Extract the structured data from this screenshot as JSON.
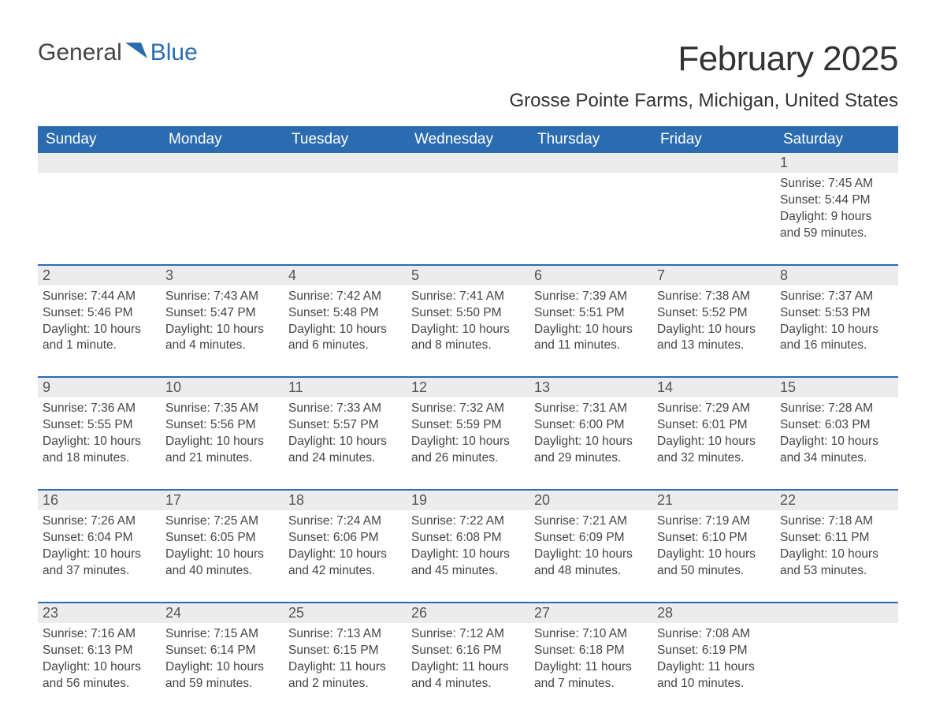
{
  "logo": {
    "text1": "General",
    "text2": "Blue"
  },
  "title": "February 2025",
  "location": "Grosse Pointe Farms, Michigan, United States",
  "colors": {
    "header_bg": "#2b6cb0",
    "header_text": "#ffffff",
    "daynum_bg": "#ececec",
    "text": "#333333",
    "row_border": "#2b6cb0"
  },
  "weekdays": [
    "Sunday",
    "Monday",
    "Tuesday",
    "Wednesday",
    "Thursday",
    "Friday",
    "Saturday"
  ],
  "labels": {
    "sunrise": "Sunrise:",
    "sunset": "Sunset:",
    "daylight": "Daylight:"
  },
  "weeks": [
    [
      null,
      null,
      null,
      null,
      null,
      null,
      {
        "n": "1",
        "sunrise": "7:45 AM",
        "sunset": "5:44 PM",
        "daylight": "9 hours and 59 minutes."
      }
    ],
    [
      {
        "n": "2",
        "sunrise": "7:44 AM",
        "sunset": "5:46 PM",
        "daylight": "10 hours and 1 minute."
      },
      {
        "n": "3",
        "sunrise": "7:43 AM",
        "sunset": "5:47 PM",
        "daylight": "10 hours and 4 minutes."
      },
      {
        "n": "4",
        "sunrise": "7:42 AM",
        "sunset": "5:48 PM",
        "daylight": "10 hours and 6 minutes."
      },
      {
        "n": "5",
        "sunrise": "7:41 AM",
        "sunset": "5:50 PM",
        "daylight": "10 hours and 8 minutes."
      },
      {
        "n": "6",
        "sunrise": "7:39 AM",
        "sunset": "5:51 PM",
        "daylight": "10 hours and 11 minutes."
      },
      {
        "n": "7",
        "sunrise": "7:38 AM",
        "sunset": "5:52 PM",
        "daylight": "10 hours and 13 minutes."
      },
      {
        "n": "8",
        "sunrise": "7:37 AM",
        "sunset": "5:53 PM",
        "daylight": "10 hours and 16 minutes."
      }
    ],
    [
      {
        "n": "9",
        "sunrise": "7:36 AM",
        "sunset": "5:55 PM",
        "daylight": "10 hours and 18 minutes."
      },
      {
        "n": "10",
        "sunrise": "7:35 AM",
        "sunset": "5:56 PM",
        "daylight": "10 hours and 21 minutes."
      },
      {
        "n": "11",
        "sunrise": "7:33 AM",
        "sunset": "5:57 PM",
        "daylight": "10 hours and 24 minutes."
      },
      {
        "n": "12",
        "sunrise": "7:32 AM",
        "sunset": "5:59 PM",
        "daylight": "10 hours and 26 minutes."
      },
      {
        "n": "13",
        "sunrise": "7:31 AM",
        "sunset": "6:00 PM",
        "daylight": "10 hours and 29 minutes."
      },
      {
        "n": "14",
        "sunrise": "7:29 AM",
        "sunset": "6:01 PM",
        "daylight": "10 hours and 32 minutes."
      },
      {
        "n": "15",
        "sunrise": "7:28 AM",
        "sunset": "6:03 PM",
        "daylight": "10 hours and 34 minutes."
      }
    ],
    [
      {
        "n": "16",
        "sunrise": "7:26 AM",
        "sunset": "6:04 PM",
        "daylight": "10 hours and 37 minutes."
      },
      {
        "n": "17",
        "sunrise": "7:25 AM",
        "sunset": "6:05 PM",
        "daylight": "10 hours and 40 minutes."
      },
      {
        "n": "18",
        "sunrise": "7:24 AM",
        "sunset": "6:06 PM",
        "daylight": "10 hours and 42 minutes."
      },
      {
        "n": "19",
        "sunrise": "7:22 AM",
        "sunset": "6:08 PM",
        "daylight": "10 hours and 45 minutes."
      },
      {
        "n": "20",
        "sunrise": "7:21 AM",
        "sunset": "6:09 PM",
        "daylight": "10 hours and 48 minutes."
      },
      {
        "n": "21",
        "sunrise": "7:19 AM",
        "sunset": "6:10 PM",
        "daylight": "10 hours and 50 minutes."
      },
      {
        "n": "22",
        "sunrise": "7:18 AM",
        "sunset": "6:11 PM",
        "daylight": "10 hours and 53 minutes."
      }
    ],
    [
      {
        "n": "23",
        "sunrise": "7:16 AM",
        "sunset": "6:13 PM",
        "daylight": "10 hours and 56 minutes."
      },
      {
        "n": "24",
        "sunrise": "7:15 AM",
        "sunset": "6:14 PM",
        "daylight": "10 hours and 59 minutes."
      },
      {
        "n": "25",
        "sunrise": "7:13 AM",
        "sunset": "6:15 PM",
        "daylight": "11 hours and 2 minutes."
      },
      {
        "n": "26",
        "sunrise": "7:12 AM",
        "sunset": "6:16 PM",
        "daylight": "11 hours and 4 minutes."
      },
      {
        "n": "27",
        "sunrise": "7:10 AM",
        "sunset": "6:18 PM",
        "daylight": "11 hours and 7 minutes."
      },
      {
        "n": "28",
        "sunrise": "7:08 AM",
        "sunset": "6:19 PM",
        "daylight": "11 hours and 10 minutes."
      },
      null
    ]
  ]
}
